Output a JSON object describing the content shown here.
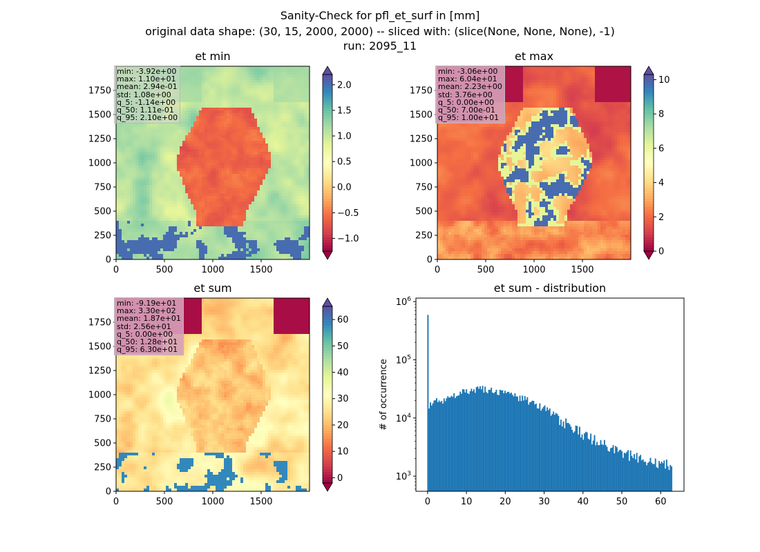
{
  "figure": {
    "title_lines": [
      "Sanity-Check for pfl_et_surf in [mm]",
      "original data shape: (30, 15, 2000, 2000) -- sliced with: (slice(None, None, None), -1)",
      "run: 2095_11"
    ]
  },
  "colors": {
    "histogram_bar": "#1f77b4",
    "colormap": "Spectral",
    "statsbox_light": "#d3d3d3",
    "statsbox_dark": "#d6a0b9"
  },
  "chart_data": [
    {
      "type": "heatmap",
      "title": "et min",
      "xticks": [
        "0",
        "500",
        "1000",
        "1500"
      ],
      "yticks": [
        "0",
        "250",
        "500",
        "750",
        "1000",
        "1250",
        "1500",
        "1750"
      ],
      "xlim": [
        0,
        2000
      ],
      "ylim": [
        0,
        2000
      ],
      "colormap": "Spectral",
      "colorbar": {
        "range": [
          -1.25,
          2.2
        ],
        "ticks": [
          "−1.0",
          "−0.5",
          "0.0",
          "0.5",
          "1.0",
          "1.5",
          "2.0"
        ],
        "tick_values": [
          -1.0,
          -0.5,
          0.0,
          0.5,
          1.0,
          1.5,
          2.0
        ],
        "extend": "both"
      },
      "stats": [
        "min: -3.92e+00",
        "max: 1.10e+01",
        "mean: 2.94e-01",
        "std: 1.08e+00",
        "q_5: -1.14e+00",
        "q_50: 1.11e-01",
        "q_95: 2.10e+00"
      ]
    },
    {
      "type": "heatmap",
      "title": "et max",
      "xticks": [
        "0",
        "500",
        "1000",
        "1500"
      ],
      "yticks": [
        "0",
        "250",
        "500",
        "750",
        "1000",
        "1250",
        "1500",
        "1750"
      ],
      "xlim": [
        0,
        2000
      ],
      "ylim": [
        0,
        2000
      ],
      "colormap": "Spectral",
      "colorbar": {
        "range": [
          0,
          10.3
        ],
        "ticks": [
          "0",
          "2",
          "4",
          "6",
          "8",
          "10"
        ],
        "tick_values": [
          0,
          2,
          4,
          6,
          8,
          10
        ],
        "extend": "both"
      },
      "stats": [
        "min: -3.06e+00",
        "max: 6.04e+01",
        "mean: 2.23e+00",
        "std: 3.76e+00",
        "q_5: 0.00e+00",
        "q_50: 7.00e-01",
        "q_95: 1.00e+01"
      ]
    },
    {
      "type": "heatmap",
      "title": "et sum",
      "xticks": [
        "0",
        "500",
        "1000",
        "1500"
      ],
      "yticks": [
        "0",
        "250",
        "500",
        "750",
        "1000",
        "1250",
        "1500",
        "1750"
      ],
      "xlim": [
        0,
        2000
      ],
      "ylim": [
        0,
        2000
      ],
      "colormap": "Spectral",
      "colorbar": {
        "range": [
          -2,
          65
        ],
        "ticks": [
          "0",
          "10",
          "20",
          "30",
          "40",
          "50",
          "60"
        ],
        "tick_values": [
          0,
          10,
          20,
          30,
          40,
          50,
          60
        ],
        "extend": "both"
      },
      "stats": [
        "min: -9.19e+01",
        "max: 3.30e+02",
        "mean: 1.87e+01",
        "std: 2.56e+01",
        "q_5: 0.00e+00",
        "q_50: 1.28e+01",
        "q_95: 6.30e+01"
      ]
    },
    {
      "type": "bar",
      "title": "et sum - distribution",
      "ylabel": "# of occurrence",
      "xlabel": "",
      "yscale": "log",
      "xlim": [
        -3,
        66
      ],
      "ylim": [
        550,
        1150000
      ],
      "xticks": [
        "0",
        "10",
        "20",
        "30",
        "40",
        "50",
        "60"
      ],
      "xtick_values": [
        0,
        10,
        20,
        30,
        40,
        50,
        60
      ],
      "yticks": [
        {
          "base": "10",
          "exp": "3",
          "value": 1000
        },
        {
          "base": "10",
          "exp": "4",
          "value": 10000
        },
        {
          "base": "10",
          "exp": "5",
          "value": 100000
        },
        {
          "base": "10",
          "exp": "6",
          "value": 1000000
        }
      ],
      "bin_start": -0.4,
      "bin_width": 0.32,
      "anchors": [
        [
          -0.4,
          0
        ],
        [
          -0.1,
          0
        ],
        [
          0.0,
          800000
        ],
        [
          0.3,
          15000
        ],
        [
          1,
          18000
        ],
        [
          2,
          20000
        ],
        [
          3,
          19000
        ],
        [
          5,
          22000
        ],
        [
          8,
          26000
        ],
        [
          10,
          29000
        ],
        [
          12,
          31000
        ],
        [
          14,
          32000
        ],
        [
          16,
          30000
        ],
        [
          18,
          28000
        ],
        [
          20,
          27000
        ],
        [
          22,
          24000
        ],
        [
          25,
          21000
        ],
        [
          28,
          17000
        ],
        [
          30,
          14000
        ],
        [
          33,
          10000
        ],
        [
          35,
          8500
        ],
        [
          38,
          6500
        ],
        [
          40,
          5300
        ],
        [
          43,
          4200
        ],
        [
          45,
          3600
        ],
        [
          48,
          2900
        ],
        [
          50,
          2600
        ],
        [
          53,
          2200
        ],
        [
          55,
          2100
        ],
        [
          57,
          1900
        ],
        [
          60,
          1700
        ],
        [
          62,
          1600
        ],
        [
          62.8,
          1400
        ],
        [
          63.0,
          0
        ]
      ]
    }
  ]
}
